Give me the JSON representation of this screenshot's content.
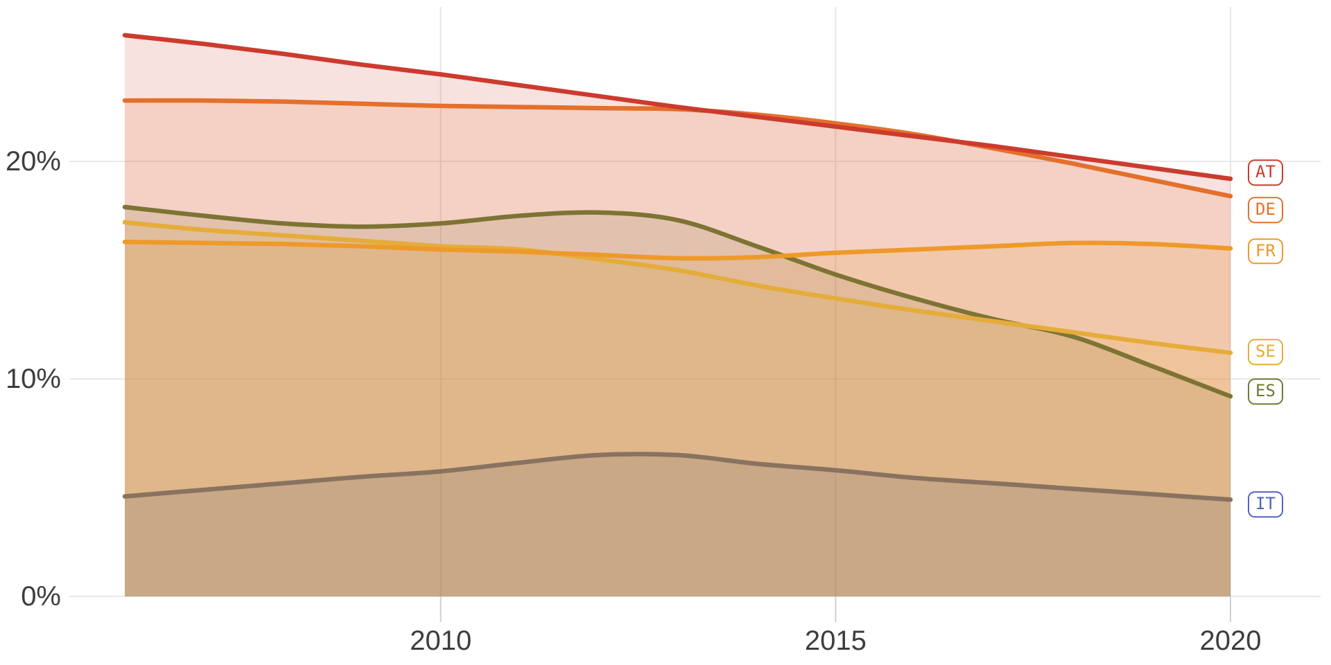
{
  "chart_data": {
    "type": "area",
    "variant": "overlapping-translucent-areas",
    "title": "",
    "xlabel": "",
    "ylabel": "",
    "units": "%",
    "x": [
      2006,
      2007,
      2008,
      2009,
      2010,
      2011,
      2012,
      2013,
      2014,
      2015,
      2016,
      2017,
      2018,
      2019,
      2020
    ],
    "xlim": [
      2006,
      2020
    ],
    "ylim": [
      0,
      27.4
    ],
    "grid": true,
    "legend_position": "right-edge-boxed-entity-codes",
    "x_ticks": [
      {
        "value": 2010,
        "label": "2010"
      },
      {
        "value": 2015,
        "label": "2015"
      },
      {
        "value": 2020,
        "label": "2020"
      }
    ],
    "y_ticks": [
      {
        "value": 0,
        "label": "0%"
      },
      {
        "value": 10,
        "label": "10%"
      },
      {
        "value": 20,
        "label": "20%"
      }
    ],
    "series": [
      {
        "code": "AT",
        "color": "#cc3b2e",
        "label_color": "#cc3b2e",
        "fill_opacity": 0.15,
        "values": [
          25.8,
          25.4,
          24.95,
          24.45,
          24.0,
          23.5,
          23.0,
          22.5,
          22.05,
          21.6,
          21.15,
          20.7,
          20.2,
          19.7,
          19.2
        ]
      },
      {
        "code": "DE",
        "color": "#e4702b",
        "label_color": "#e4702b",
        "fill_opacity": 0.15,
        "values": [
          22.8,
          22.8,
          22.75,
          22.65,
          22.55,
          22.5,
          22.45,
          22.4,
          22.15,
          21.75,
          21.25,
          20.6,
          19.9,
          19.15,
          18.4
        ]
      },
      {
        "code": "FR",
        "color": "#ee9929",
        "label_color": "#ee9929",
        "fill_opacity": 0.15,
        "values": [
          16.3,
          16.25,
          16.2,
          16.1,
          15.95,
          15.85,
          15.7,
          15.55,
          15.6,
          15.8,
          15.95,
          16.1,
          16.25,
          16.2,
          16.0
        ]
      },
      {
        "code": "SE",
        "color": "#e5ac3a",
        "label_color": "#e5ac3a",
        "fill_opacity": 0.15,
        "values": [
          17.2,
          16.85,
          16.6,
          16.35,
          16.1,
          15.95,
          15.5,
          15.0,
          14.3,
          13.7,
          13.15,
          12.65,
          12.15,
          11.65,
          11.2
        ]
      },
      {
        "code": "ES",
        "color": "#7d7434",
        "label_color": "#6b7a33",
        "fill_opacity": 0.15,
        "values": [
          17.9,
          17.5,
          17.15,
          17.0,
          17.15,
          17.5,
          17.65,
          17.3,
          16.1,
          14.8,
          13.7,
          12.75,
          11.95,
          10.6,
          9.2
        ]
      },
      {
        "code": "IT",
        "color": "#8a7260",
        "label_color": "#5362c2",
        "fill_color": "#6e6e6e",
        "fill_opacity": 0.2,
        "values": [
          4.6,
          4.9,
          5.2,
          5.5,
          5.75,
          6.15,
          6.5,
          6.5,
          6.1,
          5.8,
          5.45,
          5.2,
          4.95,
          4.7,
          4.45
        ]
      }
    ]
  },
  "colors": {
    "background": "#ffffff",
    "gridline": "#e9e9e9",
    "vertical_gridline": "#e5e5e5",
    "tick_stub": "#cfcfcf",
    "axis_text": "#3d3d3d"
  }
}
